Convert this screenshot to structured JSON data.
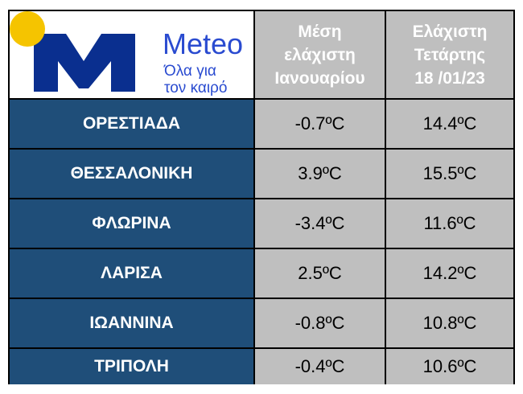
{
  "logo": {
    "name": "Meteo",
    "tagline": [
      "Όλα για",
      "τον καιρό"
    ]
  },
  "table": {
    "headers": [
      [
        "Μέση",
        "ελάχιστη",
        "Ιανουαρίου"
      ],
      [
        "Ελάχιστη",
        "Τετάρτης",
        "18 /01/23"
      ]
    ],
    "rows": [
      [
        "ΟΡΕΣΤΙΑΔΑ",
        "-0.7ºC",
        "14.4ºC"
      ],
      [
        "ΘΕΣΣΑΛΟΝΙΚΗ",
        "3.9ºC",
        "15.5ºC"
      ],
      [
        "ΦΛΩΡΙΝΑ",
        "-3.4ºC",
        "11.6ºC"
      ],
      [
        "ΛΑΡΙΣΑ",
        "2.5ºC",
        "14.2ºC"
      ],
      [
        "ΙΩΑΝΝΙΝΑ",
        "-0.8ºC",
        "10.8ºC"
      ],
      [
        "ΤΡΙΠΟΛΗ",
        "-0.4ºC",
        "10.6ºC"
      ]
    ]
  }
}
